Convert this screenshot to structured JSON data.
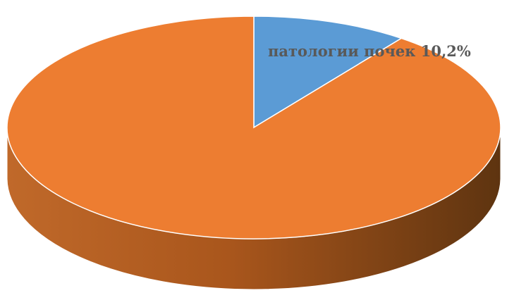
{
  "chart_data": {
    "type": "pie",
    "style": "3d",
    "start_angle_deg": 0,
    "direction": "clockwise",
    "slices": [
      {
        "label": "патологии почек",
        "value": 10.2,
        "color": "#5B9BD5",
        "data_label": "патологии почек 10,2%"
      },
      {
        "label": "",
        "value": 89.8,
        "color": "#ED7D31",
        "data_label": ""
      }
    ],
    "title": "",
    "legend": "none"
  }
}
